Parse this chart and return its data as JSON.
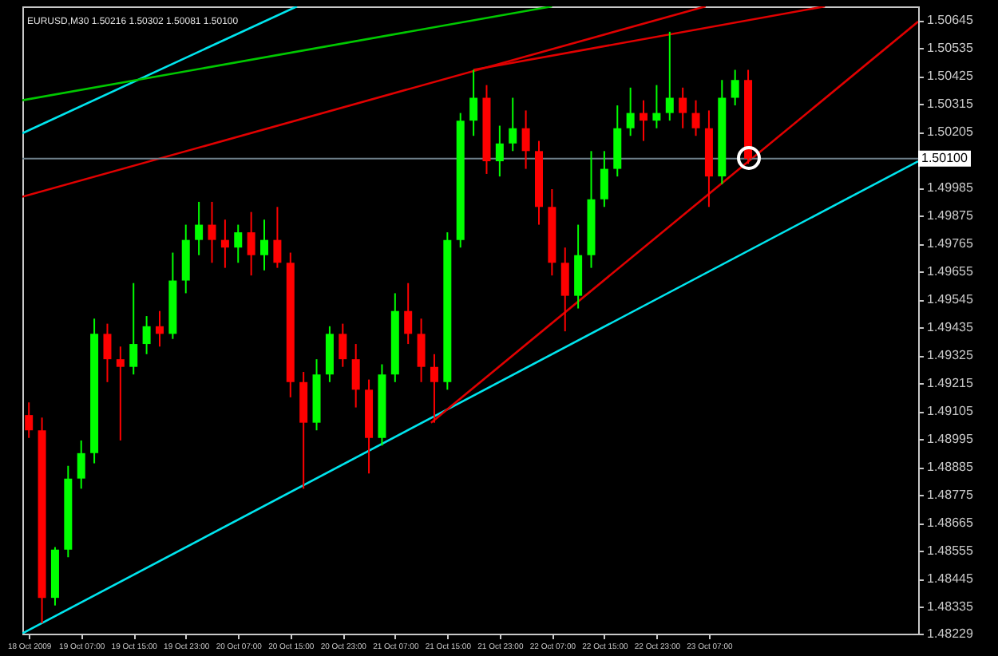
{
  "chart_data": {
    "type": "candlestick",
    "title": "EURUSD,M30  1.50216 1.50302 1.50081 1.50100",
    "x": [
      "2009-10-18T23:00",
      "2009-10-19T01:00",
      "2009-10-19T03:00",
      "2009-10-19T05:00",
      "2009-10-19T07:00",
      "2009-10-19T09:00",
      "2009-10-19T11:00",
      "2009-10-19T13:00",
      "2009-10-19T15:00",
      "2009-10-19T17:00",
      "2009-10-19T19:00",
      "2009-10-19T21:00",
      "2009-10-19T23:00",
      "2009-10-20T01:00",
      "2009-10-20T03:00",
      "2009-10-20T05:00",
      "2009-10-20T07:00",
      "2009-10-20T09:00",
      "2009-10-20T11:00",
      "2009-10-20T13:00",
      "2009-10-20T15:00",
      "2009-10-20T17:00",
      "2009-10-20T19:00",
      "2009-10-20T21:00",
      "2009-10-20T23:00",
      "2009-10-21T01:00",
      "2009-10-21T03:00",
      "2009-10-21T05:00",
      "2009-10-21T07:00",
      "2009-10-21T09:00",
      "2009-10-21T11:00",
      "2009-10-21T13:00",
      "2009-10-21T15:00",
      "2009-10-21T17:00",
      "2009-10-21T19:00",
      "2009-10-21T21:00",
      "2009-10-21T23:00",
      "2009-10-22T01:00",
      "2009-10-22T03:00",
      "2009-10-22T05:00",
      "2009-10-22T07:00",
      "2009-10-22T09:00",
      "2009-10-22T11:00",
      "2009-10-22T13:00",
      "2009-10-22T15:00",
      "2009-10-22T17:00",
      "2009-10-22T19:00",
      "2009-10-22T21:00",
      "2009-10-22T23:00",
      "2009-10-23T01:00",
      "2009-10-23T03:00",
      "2009-10-23T05:00",
      "2009-10-23T07:00",
      "2009-10-23T09:00",
      "2009-10-23T11:00",
      "2009-10-23T13:00"
    ],
    "ohlc": [
      [
        1.4909,
        1.4914,
        1.49,
        1.4903
      ],
      [
        1.4903,
        1.4908,
        1.4827,
        1.4837
      ],
      [
        1.4837,
        1.4857,
        1.4834,
        1.4856
      ],
      [
        1.4856,
        1.4889,
        1.4853,
        1.4884
      ],
      [
        1.4884,
        1.4899,
        1.488,
        1.4894
      ],
      [
        1.4894,
        1.4947,
        1.489,
        1.4941
      ],
      [
        1.4941,
        1.4945,
        1.4922,
        1.4931
      ],
      [
        1.4931,
        1.4936,
        1.4899,
        1.4928
      ],
      [
        1.4928,
        1.4961,
        1.4925,
        1.4937
      ],
      [
        1.4937,
        1.4948,
        1.4933,
        1.4944
      ],
      [
        1.4944,
        1.495,
        1.4936,
        1.4941
      ],
      [
        1.4941,
        1.4973,
        1.4939,
        1.4962
      ],
      [
        1.4962,
        1.4984,
        1.4957,
        1.4978
      ],
      [
        1.4978,
        1.4993,
        1.4972,
        1.4984
      ],
      [
        1.4984,
        1.4993,
        1.4969,
        1.4978
      ],
      [
        1.4978,
        1.4986,
        1.4967,
        1.4975
      ],
      [
        1.4975,
        1.4984,
        1.4969,
        1.4981
      ],
      [
        1.4981,
        1.4989,
        1.4964,
        1.4972
      ],
      [
        1.4972,
        1.4986,
        1.4966,
        1.4978
      ],
      [
        1.4978,
        1.4991,
        1.4967,
        1.4969
      ],
      [
        1.4969,
        1.4973,
        1.4916,
        1.4922
      ],
      [
        1.4922,
        1.4926,
        1.488,
        1.4906
      ],
      [
        1.4906,
        1.4931,
        1.4903,
        1.4925
      ],
      [
        1.4925,
        1.4944,
        1.4922,
        1.4941
      ],
      [
        1.4941,
        1.4945,
        1.4928,
        1.4931
      ],
      [
        1.4931,
        1.4937,
        1.4912,
        1.4919
      ],
      [
        1.4919,
        1.4923,
        1.4886,
        1.49
      ],
      [
        1.49,
        1.4929,
        1.4897,
        1.4925
      ],
      [
        1.4925,
        1.4957,
        1.4922,
        1.495
      ],
      [
        1.495,
        1.4961,
        1.4937,
        1.4941
      ],
      [
        1.4941,
        1.4947,
        1.4922,
        1.4928
      ],
      [
        1.4928,
        1.4933,
        1.4906,
        1.4922
      ],
      [
        1.4922,
        1.4981,
        1.4919,
        1.4978
      ],
      [
        1.4978,
        1.5028,
        1.4975,
        1.5025
      ],
      [
        1.5025,
        1.5045,
        1.5019,
        1.5034
      ],
      [
        1.5034,
        1.5039,
        1.5004,
        1.5009
      ],
      [
        1.5009,
        1.5023,
        1.5003,
        1.5016
      ],
      [
        1.5016,
        1.5034,
        1.5013,
        1.5022
      ],
      [
        1.5022,
        1.5029,
        1.5006,
        1.5013
      ],
      [
        1.5013,
        1.5017,
        1.4984,
        1.4991
      ],
      [
        1.4991,
        1.4998,
        1.4964,
        1.4969
      ],
      [
        1.4969,
        1.4975,
        1.4942,
        1.4956
      ],
      [
        1.4956,
        1.4984,
        1.4951,
        1.4972
      ],
      [
        1.4972,
        1.5013,
        1.4967,
        1.4994
      ],
      [
        1.4994,
        1.5013,
        1.4991,
        1.5006
      ],
      [
        1.5006,
        1.5031,
        1.5003,
        1.5022
      ],
      [
        1.5022,
        1.5038,
        1.5019,
        1.5028
      ],
      [
        1.5028,
        1.5033,
        1.5017,
        1.5025
      ],
      [
        1.5025,
        1.5039,
        1.5022,
        1.5028
      ],
      [
        1.5028,
        1.506,
        1.5025,
        1.5034
      ],
      [
        1.5034,
        1.5038,
        1.5022,
        1.5028
      ],
      [
        1.5028,
        1.5033,
        1.5019,
        1.5022
      ],
      [
        1.5022,
        1.5029,
        1.4991,
        1.5003
      ],
      [
        1.5003,
        1.5041,
        1.5,
        1.5034
      ],
      [
        1.5034,
        1.5045,
        1.5031,
        1.5041
      ],
      [
        1.5041,
        1.5045,
        1.5008,
        1.501
      ]
    ],
    "colors": [
      "#ff0000",
      "#ff0000",
      "#00ff00",
      "#00ff00",
      "#00ff00",
      "#00ff00",
      "#ff0000",
      "#ff0000",
      "#00ff00",
      "#00ff00",
      "#ff0000",
      "#00ff00",
      "#00ff00",
      "#00ff00",
      "#ff0000",
      "#ff0000",
      "#00ff00",
      "#ff0000",
      "#00ff00",
      "#ff0000",
      "#ff0000",
      "#ff0000",
      "#00ff00",
      "#00ff00",
      "#ff0000",
      "#ff0000",
      "#ff0000",
      "#00ff00",
      "#00ff00",
      "#ff0000",
      "#ff0000",
      "#ff0000",
      "#00ff00",
      "#00ff00",
      "#00ff00",
      "#ff0000",
      "#00ff00",
      "#00ff00",
      "#ff0000",
      "#ff0000",
      "#ff0000",
      "#ff0000",
      "#00ff00",
      "#00ff00",
      "#00ff00",
      "#00ff00",
      "#00ff00",
      "#ff0000",
      "#00ff00",
      "#00ff00",
      "#ff0000",
      "#ff0000",
      "#ff0000",
      "#00ff00",
      "#00ff00",
      "#ff0000"
    ],
    "series": [
      {
        "type": "line",
        "color": "#00e5ee",
        "x": [
          "2009-10-18T22:00",
          "2009-10-24T15:00"
        ],
        "values": [
          1.4823,
          1.5009
        ]
      },
      {
        "type": "line",
        "color": "#00e5ee",
        "x": [
          "2009-10-18T22:00",
          "2009-10-20T16:00"
        ],
        "values": [
          1.502,
          1.507
        ]
      },
      {
        "type": "line",
        "color": "#00c800",
        "x": [
          "2009-10-18T22:00",
          "2009-10-22T07:00"
        ],
        "values": [
          1.5033,
          1.507
        ]
      },
      {
        "type": "line",
        "color": "#e00000",
        "x": [
          "2009-10-18T22:00",
          "2009-10-23T06:30"
        ],
        "values": [
          1.4995,
          1.507
        ]
      },
      {
        "type": "line",
        "color": "#e00000",
        "x": [
          "2009-10-21T19:00",
          "2009-10-24T00:45"
        ],
        "values": [
          1.5045,
          1.507
        ]
      },
      {
        "type": "line",
        "color": "#e00000",
        "x": [
          "2009-10-21T12:30",
          "2009-10-24T15:00"
        ],
        "values": [
          1.4906,
          1.5064
        ]
      }
    ],
    "ref_lines": [
      {
        "axis": "y",
        "value": 1.501,
        "label": "1.50100",
        "color": "#6e7f8a"
      }
    ],
    "xlim": [
      "2009-10-18T22:00",
      "2009-10-24T15:00"
    ],
    "xticks": [
      {
        "value": "2009-10-18T23:00",
        "label": "18 Oct 2009"
      },
      {
        "value": "2009-10-19T07:00",
        "label": "19 Oct 07:00"
      },
      {
        "value": "2009-10-19T15:00",
        "label": "19 Oct 15:00"
      },
      {
        "value": "2009-10-19T23:00",
        "label": "19 Oct 23:00"
      },
      {
        "value": "2009-10-20T07:00",
        "label": "20 Oct 07:00"
      },
      {
        "value": "2009-10-20T15:00",
        "label": "20 Oct 15:00"
      },
      {
        "value": "2009-10-20T23:00",
        "label": "20 Oct 23:00"
      },
      {
        "value": "2009-10-21T07:00",
        "label": "21 Oct 07:00"
      },
      {
        "value": "2009-10-21T15:00",
        "label": "21 Oct 15:00"
      },
      {
        "value": "2009-10-21T23:00",
        "label": "21 Oct 23:00"
      },
      {
        "value": "2009-10-22T07:00",
        "label": "22 Oct 07:00"
      },
      {
        "value": "2009-10-22T15:00",
        "label": "22 Oct 15:00"
      },
      {
        "value": "2009-10-22T23:00",
        "label": "22 Oct 23:00"
      },
      {
        "value": "2009-10-23T07:00",
        "label": "23 Oct 07:00"
      }
    ],
    "ylim": [
      1.48229,
      1.507
    ],
    "yticks": [
      1.50645,
      1.50535,
      1.50425,
      1.50315,
      1.50205,
      1.49985,
      1.49875,
      1.49765,
      1.49655,
      1.49545,
      1.49435,
      1.49325,
      1.49215,
      1.49105,
      1.48995,
      1.48885,
      1.48775,
      1.48665,
      1.48555,
      1.48445,
      1.48335,
      1.48229
    ],
    "grid": false
  }
}
